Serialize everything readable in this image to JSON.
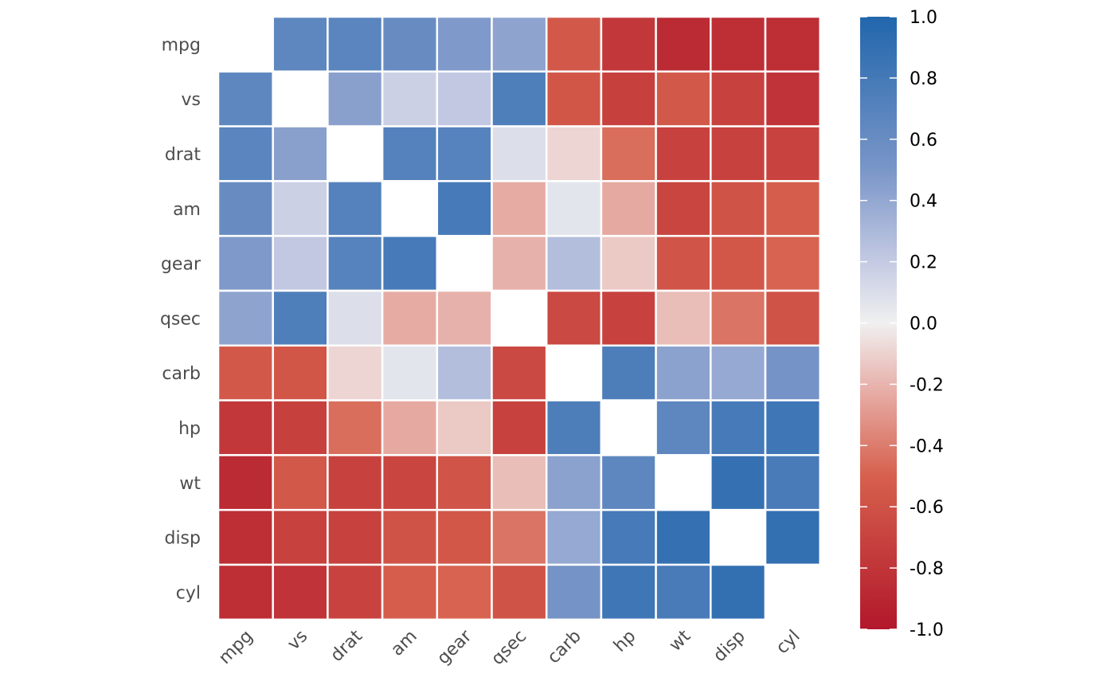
{
  "chart_data": {
    "type": "heatmap",
    "title": "",
    "xlabel": "",
    "ylabel": "",
    "variables": [
      "mpg",
      "vs",
      "drat",
      "am",
      "gear",
      "qsec",
      "carb",
      "hp",
      "wt",
      "disp",
      "cyl"
    ],
    "x_categories": [
      "mpg",
      "vs",
      "drat",
      "am",
      "gear",
      "qsec",
      "carb",
      "hp",
      "wt",
      "disp",
      "cyl"
    ],
    "y_categories_top_to_bottom": [
      "mpg",
      "vs",
      "drat",
      "am",
      "gear",
      "qsec",
      "carb",
      "hp",
      "wt",
      "disp",
      "cyl"
    ],
    "values": [
      [
        null,
        0.66,
        0.68,
        0.6,
        0.48,
        0.42,
        -0.55,
        -0.78,
        -0.87,
        -0.85,
        -0.85
      ],
      [
        0.66,
        null,
        0.44,
        0.17,
        0.21,
        0.74,
        -0.57,
        -0.72,
        -0.55,
        -0.71,
        -0.81
      ],
      [
        0.68,
        0.44,
        null,
        0.71,
        0.7,
        0.09,
        -0.09,
        -0.45,
        -0.71,
        -0.71,
        -0.7
      ],
      [
        0.6,
        0.17,
        0.71,
        null,
        0.79,
        -0.23,
        0.06,
        -0.24,
        -0.69,
        -0.59,
        -0.52
      ],
      [
        0.48,
        0.21,
        0.7,
        0.79,
        null,
        -0.21,
        0.27,
        -0.13,
        -0.58,
        -0.56,
        -0.49
      ],
      [
        0.42,
        0.74,
        0.09,
        -0.23,
        -0.21,
        null,
        -0.66,
        -0.71,
        -0.17,
        -0.43,
        -0.59
      ],
      [
        -0.55,
        -0.57,
        -0.09,
        0.06,
        0.27,
        -0.66,
        null,
        0.75,
        0.43,
        0.39,
        0.53
      ],
      [
        -0.78,
        -0.72,
        -0.45,
        -0.24,
        -0.13,
        -0.71,
        0.75,
        null,
        0.66,
        0.79,
        0.83
      ],
      [
        -0.87,
        -0.55,
        -0.71,
        -0.69,
        -0.58,
        -0.17,
        0.43,
        0.66,
        null,
        0.89,
        0.78
      ],
      [
        -0.85,
        -0.71,
        -0.71,
        -0.59,
        -0.56,
        -0.43,
        0.39,
        0.79,
        0.89,
        null,
        0.9
      ],
      [
        -0.85,
        -0.81,
        -0.7,
        -0.52,
        -0.49,
        -0.59,
        0.53,
        0.83,
        0.78,
        0.9,
        null
      ]
    ],
    "color_scale": {
      "min": -1.0,
      "mid": 0.0,
      "max": 1.0,
      "low_color": "#b2182b",
      "mid_color": "#f0f0f0",
      "high_color": "#2166ac"
    },
    "legend": {
      "position": "right",
      "ticks": [
        1.0,
        0.8,
        0.6,
        0.4,
        0.2,
        0.0,
        -0.2,
        -0.4,
        -0.6,
        -0.8,
        -1.0
      ],
      "tick_labels": [
        "1.0",
        "0.8",
        "0.6",
        "0.4",
        "0.2",
        "0.0",
        "-0.2",
        "-0.4",
        "-0.6",
        "-0.8",
        "-1.0"
      ]
    },
    "grid": false,
    "cell_border_color": "#ffffff"
  }
}
